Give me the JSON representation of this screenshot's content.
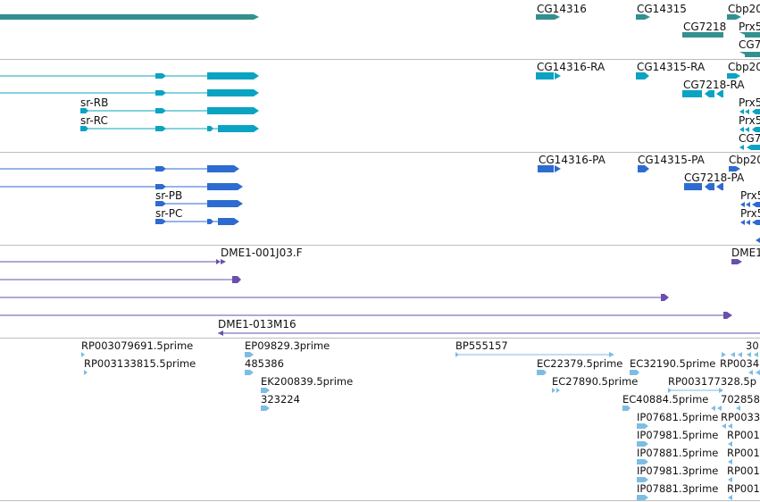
{
  "colors": {
    "gene": "#33908f",
    "transcript": "#0aa3c2",
    "protein": "#2e6bd0",
    "clone": "#6a4fae",
    "est": "#7dbde4",
    "divider": "#bdbdbd"
  },
  "tracks": {
    "genes": {
      "labels": [
        "CG14316",
        "CG14315",
        "Cbp20",
        "CG7218",
        "Prx5",
        "CG7"
      ]
    },
    "transcripts": {
      "labels": [
        "CG14316-RA",
        "CG14315-RA",
        "Cbp20",
        "CG7218-RA",
        "sr-RB",
        "sr-RC",
        "Prx5",
        "Prx5",
        "CG7"
      ]
    },
    "proteins": {
      "labels": [
        "CG14316-PA",
        "CG14315-PA",
        "Cbp20",
        "CG7218-PA",
        "sr-PB",
        "sr-PC",
        "Prx5",
        "Prx5"
      ]
    },
    "clones": {
      "labels": [
        "DME1-001J03.F",
        "DME1",
        "DME1-013M16"
      ]
    },
    "ests": {
      "labels": [
        "RP003079691.5prime",
        "EP09829.3prime",
        "BP555157",
        "30",
        "RP003133815.5prime",
        "485386",
        "EC22379.5prime",
        "EC32190.5prime",
        "RP0034",
        "EK200839.5prime",
        "EC27890.5prime",
        "RP003177328.5p",
        "323224",
        "EC40884.5prime",
        "702858",
        "IP07681.5prime",
        "RP0033",
        "IP07981.5prime",
        "RP001",
        "IP07881.5prime",
        "RP001",
        "IP07981.3prime",
        "RP001",
        "IP07881.3prime",
        "RP001"
      ]
    }
  }
}
